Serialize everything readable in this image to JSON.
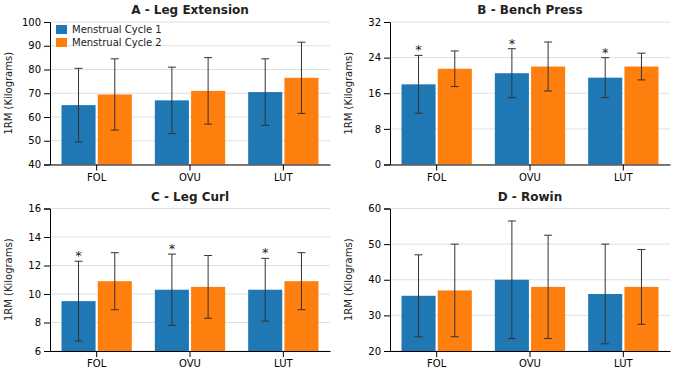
{
  "chart_data": [
    {
      "type": "bar",
      "title": "A - Leg Extension",
      "ylabel": "1RM (Kilograms)",
      "categories": [
        "FOL",
        "OVU",
        "LUT"
      ],
      "series": [
        {
          "name": "Menstrual Cycle 1",
          "values": [
            65.0,
            67.0,
            70.5
          ],
          "errors": [
            15.5,
            14.0,
            14.0
          ]
        },
        {
          "name": "Menstrual Cycle 2",
          "values": [
            69.5,
            71.0,
            76.5
          ],
          "errors": [
            15.0,
            14.0,
            15.0
          ]
        }
      ],
      "ylim": [
        40,
        100
      ],
      "yticks": [
        40,
        50,
        60,
        70,
        80,
        90,
        100
      ],
      "grid": true,
      "legend": "upper left"
    },
    {
      "type": "bar",
      "title": "B - Bench Press",
      "ylabel": "1RM (Kilograms)",
      "categories": [
        "FOL",
        "OVU",
        "LUT"
      ],
      "series": [
        {
          "values": [
            18.0,
            20.5,
            19.5
          ],
          "errors": [
            6.5,
            5.5,
            4.5
          ],
          "annotations": [
            "*",
            "*",
            "*"
          ]
        },
        {
          "values": [
            21.5,
            22.0,
            22.0
          ],
          "errors": [
            4.0,
            5.5,
            3.0
          ]
        }
      ],
      "ylim": [
        0,
        32
      ],
      "yticks": [
        0,
        8,
        16,
        24,
        32
      ],
      "grid": true
    },
    {
      "type": "bar",
      "title": "C - Leg Curl",
      "ylabel": "1RM (Kilograms)",
      "categories": [
        "FOL",
        "OVU",
        "LUT"
      ],
      "series": [
        {
          "values": [
            9.5,
            10.3,
            10.3
          ],
          "errors": [
            2.8,
            2.5,
            2.2
          ],
          "annotations": [
            "*",
            "*",
            "*"
          ]
        },
        {
          "values": [
            10.9,
            10.5,
            10.9
          ],
          "errors": [
            2.0,
            2.2,
            2.0
          ]
        }
      ],
      "ylim": [
        6,
        16
      ],
      "yticks": [
        6,
        8,
        10,
        12,
        14,
        16
      ],
      "grid": true
    },
    {
      "type": "bar",
      "title": "D - Rowin",
      "ylabel": "1RM (Kilograms)",
      "categories": [
        "FOL",
        "OVU",
        "LUT"
      ],
      "series": [
        {
          "values": [
            35.5,
            40.0,
            36.0
          ],
          "errors": [
            11.5,
            16.5,
            14.0
          ]
        },
        {
          "values": [
            37.0,
            38.0,
            38.0
          ],
          "errors": [
            13.0,
            14.5,
            10.5
          ]
        }
      ],
      "ylim": [
        20,
        60
      ],
      "yticks": [
        20,
        30,
        40,
        50,
        60
      ],
      "grid": true
    }
  ]
}
